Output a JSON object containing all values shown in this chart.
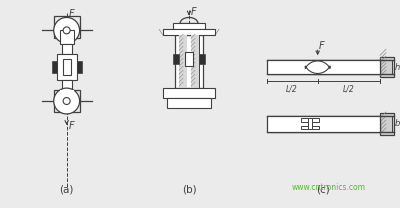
{
  "bg_color": "#ebebeb",
  "line_color": "#404040",
  "watermark_color": "#55bb33",
  "watermark_text": "www.cntronics.com",
  "label_a": "(a)",
  "label_b": "(b)",
  "label_c": "(c)",
  "F_label": "F",
  "h_label": "h",
  "b_label": "b",
  "L2_label": "L/2",
  "fig_width": 4.0,
  "fig_height": 2.08
}
